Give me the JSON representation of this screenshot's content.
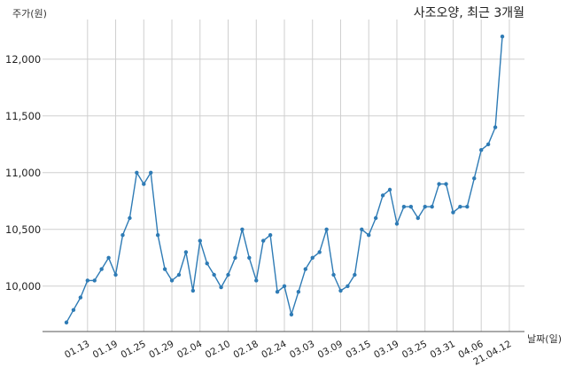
{
  "chart_data": {
    "type": "line",
    "title": "사조오양, 최근 3개월",
    "xlabel": "날짜(일)",
    "ylabel": "주가(원)",
    "ylim": [
      9600,
      12350
    ],
    "yticks": [
      10000,
      10500,
      11000,
      11500,
      12000
    ],
    "ytick_labels": [
      "10,000",
      "10,500",
      "11,000",
      "11,500",
      "12,000"
    ],
    "xtick_labels": [
      "01.13",
      "01.19",
      "01.25",
      "01.29",
      "02.04",
      "02.10",
      "02.18",
      "02.24",
      "03.03",
      "03.09",
      "03.15",
      "03.19",
      "03.25",
      "03.31",
      "04.06",
      "21.04.12"
    ],
    "xtick_indices": [
      3,
      7,
      11,
      15,
      19,
      23,
      27,
      31,
      35,
      39,
      43,
      47,
      51,
      55,
      59,
      63
    ],
    "grid": true,
    "color": "#2e7bb5",
    "series": [
      {
        "values": [
          9680,
          9790,
          9900,
          10050,
          10050,
          10150,
          10250,
          10100,
          10450,
          10600,
          11000,
          10900,
          11000,
          10450,
          10150,
          10050,
          10100,
          10300,
          9960,
          10400,
          10200,
          10100,
          9990,
          10100,
          10250,
          10500,
          10250,
          10050,
          10400,
          10450,
          9950,
          10000,
          9750,
          9950,
          10150,
          10250,
          10300,
          10500,
          10100,
          9960,
          10000,
          10100,
          10500,
          10450,
          10600,
          10800,
          10850,
          10550,
          10700,
          10700,
          10600,
          10700,
          10700,
          10900,
          10900,
          10650,
          10700,
          10700,
          10950,
          11200,
          11250,
          11400,
          12200
        ]
      }
    ]
  }
}
